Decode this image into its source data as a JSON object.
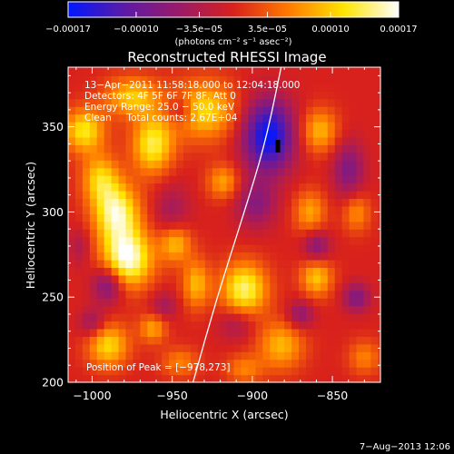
{
  "chart_data": {
    "type": "heatmap",
    "title": "Reconstructed RHESSI Image",
    "xlabel": "Heliocentric X (arcsec)",
    "ylabel": "Heliocentric Y (arcsec)",
    "xlim": [
      -1015,
      -820
    ],
    "ylim": [
      200,
      385
    ],
    "x_ticks": [
      -1000,
      -950,
      -900,
      -850
    ],
    "y_ticks": [
      200,
      250,
      300,
      350
    ],
    "x_tick_labels": [
      "−1000",
      "−950",
      "−900",
      "−850"
    ],
    "y_tick_labels": [
      "200",
      "250",
      "300",
      "350"
    ],
    "colorbar": {
      "range": [
        -0.00017,
        0.00017
      ],
      "tick_values": [
        -0.00017,
        -0.0001,
        -3.5e-05,
        3.5e-05,
        0.0001,
        0.00017
      ],
      "tick_labels": [
        "−0.00017",
        "−0.00010",
        "−3.5e−05",
        "3.5e−05",
        "0.00010",
        "0.00017"
      ],
      "units_label": "(photons cm⁻² s⁻¹ asec⁻²)",
      "colors": [
        "#0018ff",
        "#5a1aa8",
        "#9a1a6a",
        "#d8211c",
        "#ff7a00",
        "#ffe400",
        "#ffffff"
      ]
    },
    "annotations": [
      "13−Apr−2011 11:58:18.000 to 12:04:18.000",
      "Detectors: 4F 5F 6F 7F 8F, Att 0",
      "Energy Range: 25.0 − 50.0 keV",
      "Clean     Total counts: 2.67E+04"
    ],
    "peak_label": "Position of Peak = [−978,273]",
    "peak": {
      "x": -978,
      "y": 273
    },
    "min_marker": {
      "x": -884,
      "y": 337
    },
    "limb_curve": [
      [
        -937,
        200
      ],
      [
        -922,
        250
      ],
      [
        -905,
        300
      ],
      [
        -892,
        340
      ],
      [
        -882,
        385
      ]
    ],
    "sources": [
      {
        "x": -978,
        "y": 273,
        "amp": 0.00017,
        "sx": 11,
        "sy": 12
      },
      {
        "x": -985,
        "y": 300,
        "amp": 0.00015,
        "sx": 10,
        "sy": 12
      },
      {
        "x": -995,
        "y": 320,
        "amp": 0.0001,
        "sx": 8,
        "sy": 10
      },
      {
        "x": -962,
        "y": 340,
        "amp": 0.00013,
        "sx": 9,
        "sy": 12
      },
      {
        "x": -1005,
        "y": 348,
        "amp": 0.00012,
        "sx": 9,
        "sy": 9
      },
      {
        "x": -975,
        "y": 368,
        "amp": 0.0001,
        "sx": 12,
        "sy": 8
      },
      {
        "x": -930,
        "y": 360,
        "amp": 0.00011,
        "sx": 14,
        "sy": 12
      },
      {
        "x": -905,
        "y": 255,
        "amp": 0.00014,
        "sx": 10,
        "sy": 11
      },
      {
        "x": -935,
        "y": 258,
        "amp": 9e-05,
        "sx": 6,
        "sy": 10
      },
      {
        "x": -948,
        "y": 282,
        "amp": 0.0001,
        "sx": 7,
        "sy": 8
      },
      {
        "x": -918,
        "y": 318,
        "amp": 8e-05,
        "sx": 7,
        "sy": 7
      },
      {
        "x": -860,
        "y": 262,
        "amp": 0.0001,
        "sx": 7,
        "sy": 8
      },
      {
        "x": -882,
        "y": 222,
        "amp": 9e-05,
        "sx": 10,
        "sy": 10
      },
      {
        "x": -864,
        "y": 300,
        "amp": 8e-05,
        "sx": 7,
        "sy": 9
      },
      {
        "x": -858,
        "y": 348,
        "amp": 9e-05,
        "sx": 8,
        "sy": 9
      },
      {
        "x": -835,
        "y": 300,
        "amp": 7e-05,
        "sx": 6,
        "sy": 8
      },
      {
        "x": -990,
        "y": 222,
        "amp": 0.00011,
        "sx": 9,
        "sy": 9
      },
      {
        "x": -962,
        "y": 232,
        "amp": 8e-05,
        "sx": 6,
        "sy": 6
      },
      {
        "x": -945,
        "y": 212,
        "amp": 6e-05,
        "sx": 8,
        "sy": 6
      },
      {
        "x": -905,
        "y": 208,
        "amp": 6e-05,
        "sx": 8,
        "sy": 6
      },
      {
        "x": -830,
        "y": 215,
        "amp": 6e-05,
        "sx": 7,
        "sy": 7
      },
      {
        "x": -890,
        "y": 345,
        "amp": -0.00017,
        "sx": 11,
        "sy": 15
      },
      {
        "x": -898,
        "y": 305,
        "amp": -7e-05,
        "sx": 9,
        "sy": 10
      },
      {
        "x": -860,
        "y": 280,
        "amp": -8e-05,
        "sx": 6,
        "sy": 7
      },
      {
        "x": -840,
        "y": 325,
        "amp": -8e-05,
        "sx": 7,
        "sy": 12
      },
      {
        "x": -990,
        "y": 258,
        "amp": -0.0001,
        "sx": 7,
        "sy": 8
      },
      {
        "x": -1000,
        "y": 235,
        "amp": -6e-05,
        "sx": 6,
        "sy": 6
      },
      {
        "x": -950,
        "y": 300,
        "amp": -5e-05,
        "sx": 8,
        "sy": 12
      },
      {
        "x": -945,
        "y": 360,
        "amp": -6e-05,
        "sx": 6,
        "sy": 6
      },
      {
        "x": -955,
        "y": 245,
        "amp": -5e-05,
        "sx": 6,
        "sy": 6
      },
      {
        "x": -910,
        "y": 235,
        "amp": -5e-05,
        "sx": 8,
        "sy": 7
      },
      {
        "x": -870,
        "y": 240,
        "amp": -7e-05,
        "sx": 6,
        "sy": 6
      },
      {
        "x": -835,
        "y": 250,
        "amp": -8e-05,
        "sx": 6,
        "sy": 6
      },
      {
        "x": -1008,
        "y": 280,
        "amp": -4e-05,
        "sx": 5,
        "sy": 8
      }
    ]
  },
  "footer": {
    "date": "7−Aug−2013 12:06"
  }
}
